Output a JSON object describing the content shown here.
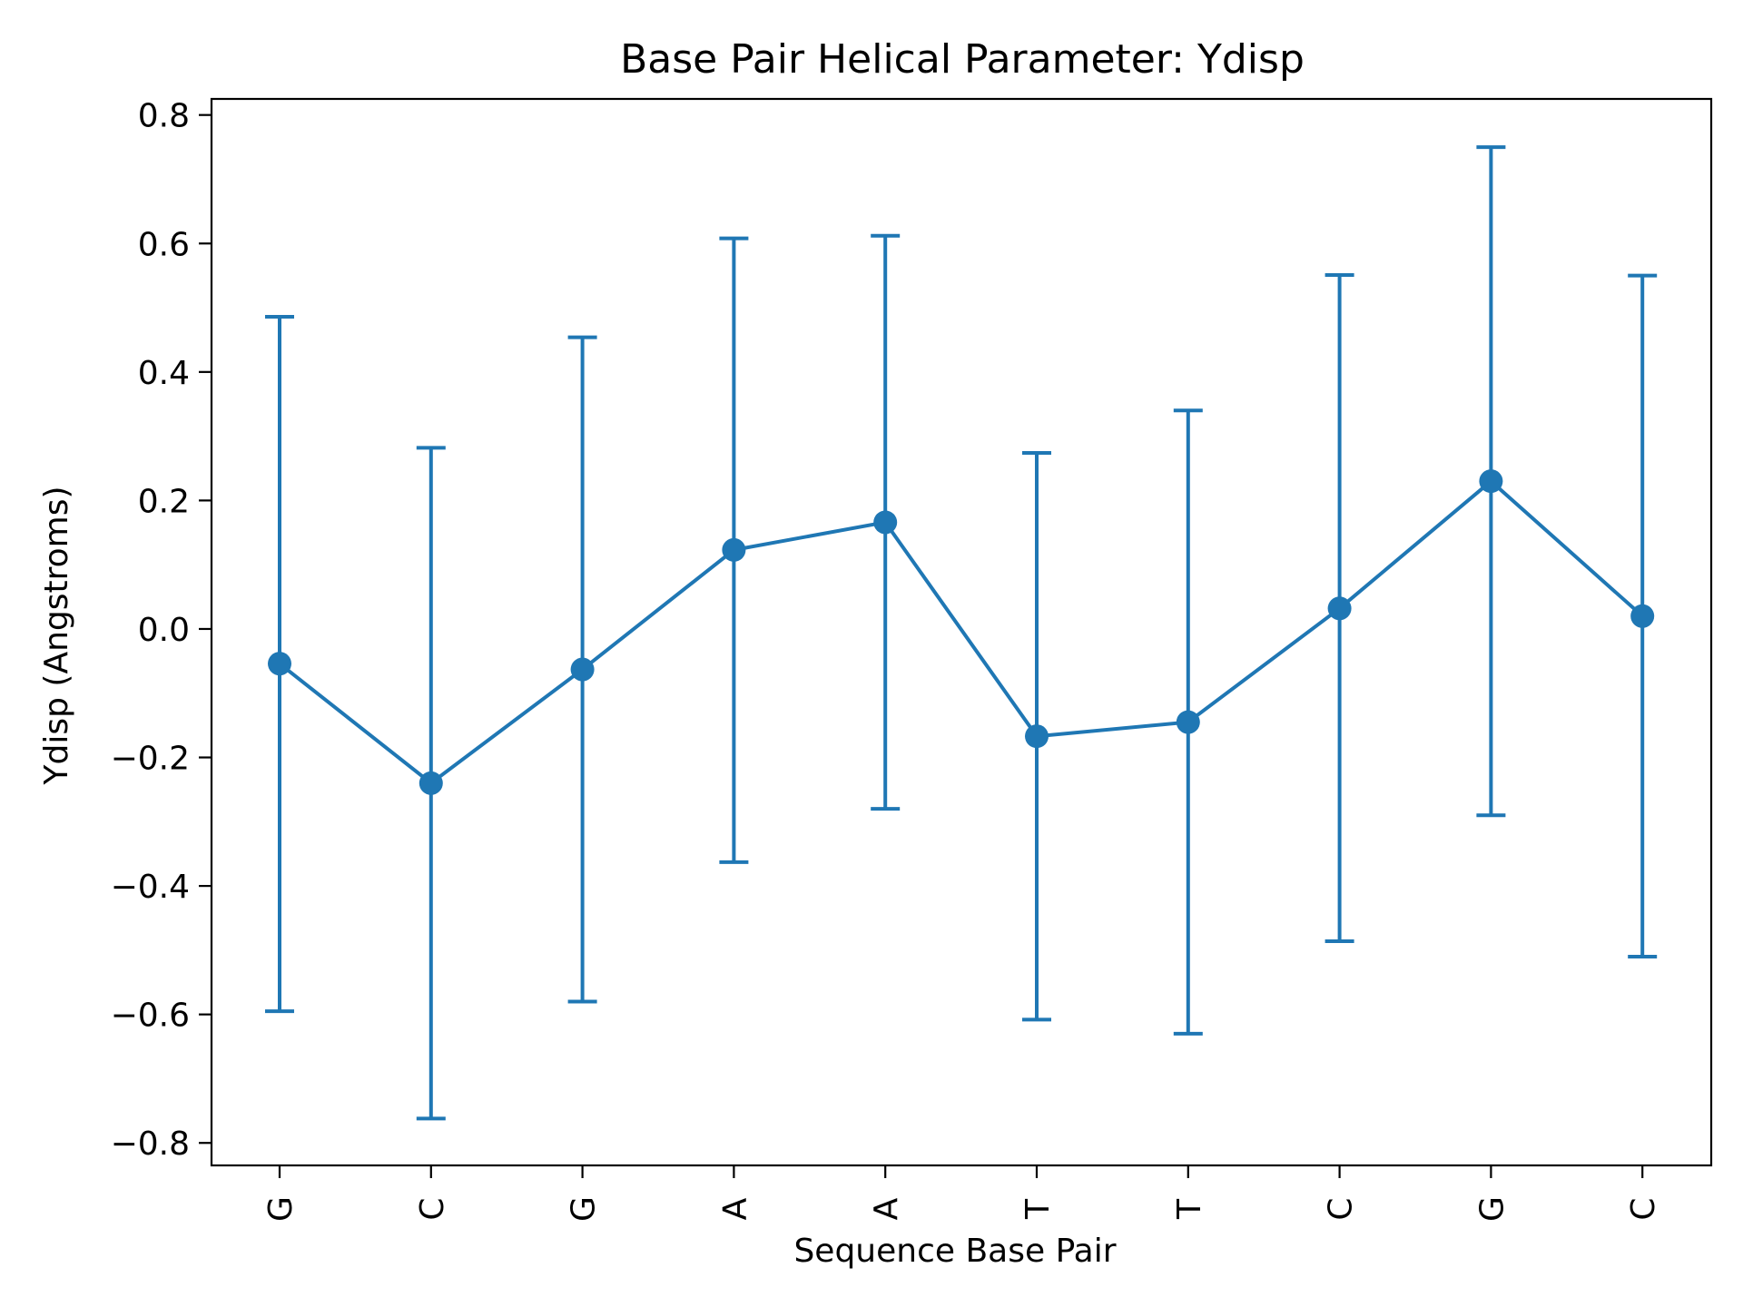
{
  "chart_data": {
    "type": "line",
    "title": "Base Pair  Helical Parameter: Ydisp",
    "xlabel": "Sequence Base Pair",
    "ylabel": "Ydisp (Angstroms)",
    "categories": [
      "G",
      "C",
      "G",
      "A",
      "A",
      "T",
      "T",
      "C",
      "G",
      "C"
    ],
    "series": [
      {
        "values": [
          -0.054,
          -0.24,
          -0.063,
          0.123,
          0.166,
          -0.167,
          -0.145,
          0.032,
          0.23,
          0.02
        ],
        "error_low": [
          -0.595,
          -0.762,
          -0.58,
          -0.363,
          -0.28,
          -0.608,
          -0.63,
          -0.486,
          -0.29,
          -0.51
        ],
        "error_high": [
          0.486,
          0.282,
          0.454,
          0.608,
          0.612,
          0.274,
          0.34,
          0.551,
          0.75,
          0.55
        ]
      }
    ],
    "ylim": [
      -0.835,
      0.825
    ],
    "yticks": [
      -0.8,
      -0.6,
      -0.4,
      -0.2,
      0.0,
      0.2,
      0.4,
      0.6,
      0.8
    ],
    "ytick_labels": [
      "−0.8",
      "−0.6",
      "−0.4",
      "−0.2",
      "0.0",
      "0.2",
      "0.4",
      "0.6",
      "0.8"
    ],
    "grid": false,
    "legend": "none",
    "colors": {
      "series": "#1f77b4",
      "axes": "#000000"
    }
  }
}
